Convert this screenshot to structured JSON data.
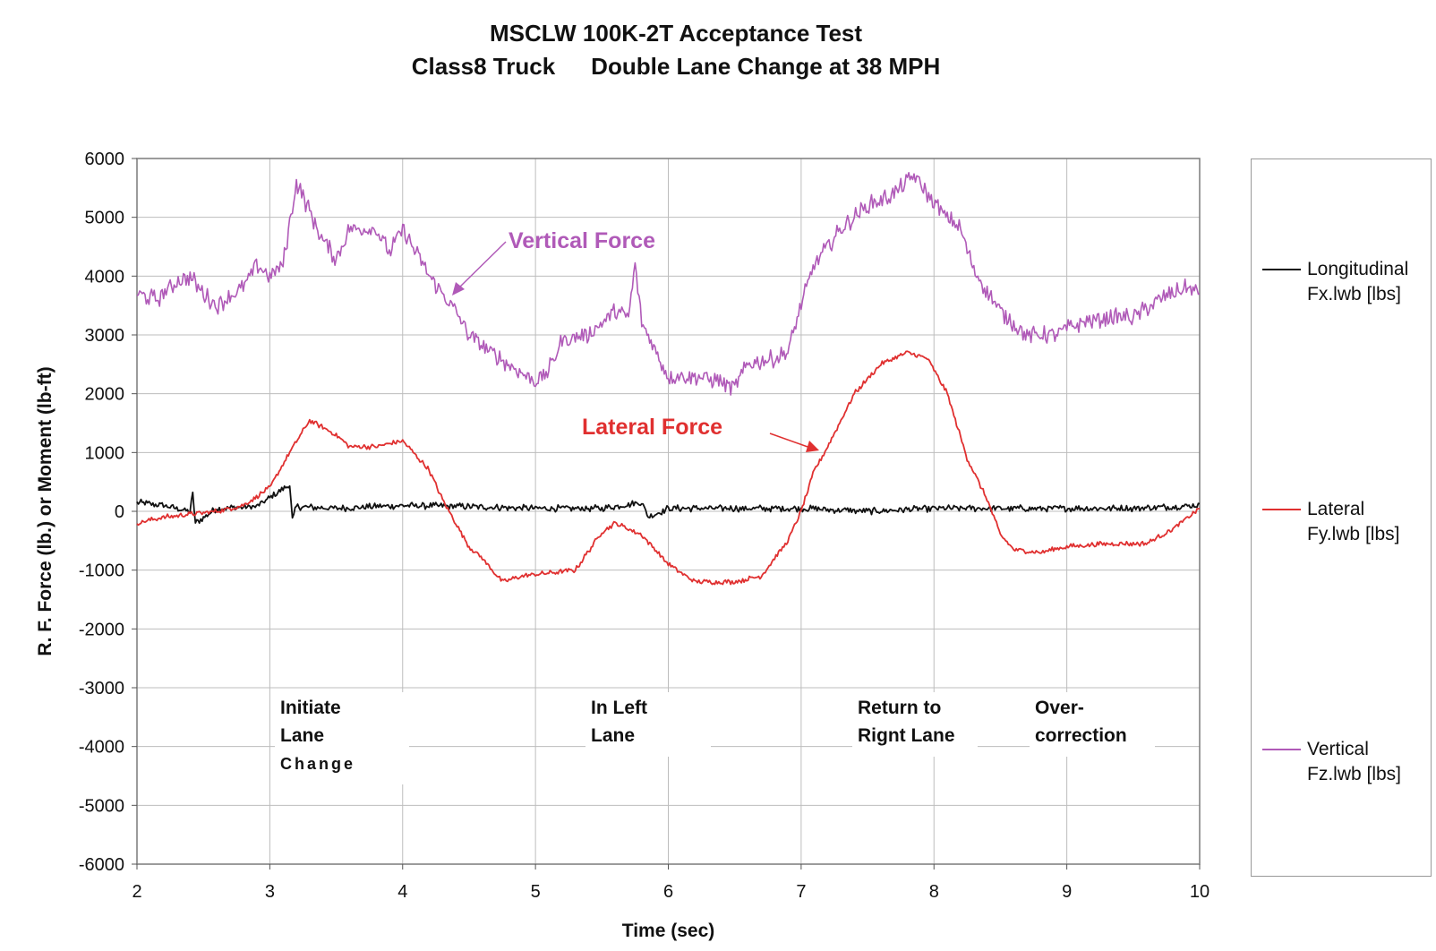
{
  "chart_data": {
    "type": "line",
    "title": "MSCLW 100K-2T Acceptance Test",
    "subtitle_left": "Class8 Truck",
    "subtitle_right": "Double Lane Change at 38 MPH",
    "xlabel": "Time (sec)",
    "ylabel": "R. F. Force (lb.) or Moment (lb-ft)",
    "xlim": [
      2,
      10
    ],
    "ylim": [
      -6000,
      6000
    ],
    "xticks": [
      2,
      3,
      4,
      5,
      6,
      7,
      8,
      9,
      10
    ],
    "yticks": [
      6000,
      5000,
      4000,
      3000,
      2000,
      1000,
      0,
      -1000,
      -2000,
      -3000,
      -4000,
      -5000,
      -6000
    ],
    "grid": true,
    "legend_position": "right",
    "series": [
      {
        "name": "Longitudinal Fx.lwb [lbs]",
        "color": "#111111",
        "x": [
          2.0,
          2.2,
          2.4,
          2.42,
          2.44,
          2.6,
          2.9,
          3.15,
          3.17,
          3.2,
          3.5,
          4.0,
          4.5,
          5.0,
          5.5,
          5.8,
          5.85,
          6.0,
          6.5,
          7.0,
          7.5,
          8.0,
          8.5,
          9.0,
          9.5,
          10.0
        ],
        "y": [
          150,
          100,
          0,
          300,
          -200,
          50,
          80,
          450,
          -150,
          80,
          50,
          100,
          80,
          50,
          50,
          150,
          -100,
          50,
          50,
          50,
          0,
          50,
          50,
          50,
          50,
          100
        ]
      },
      {
        "name": "Lateral Fy.lwb [lbs]",
        "color": "#e03030",
        "x": [
          2.0,
          2.2,
          2.4,
          2.6,
          2.8,
          3.0,
          3.15,
          3.3,
          3.5,
          3.6,
          3.8,
          4.0,
          4.2,
          4.3,
          4.4,
          4.5,
          4.6,
          4.75,
          4.9,
          5.1,
          5.3,
          5.5,
          5.6,
          5.8,
          6.0,
          6.2,
          6.5,
          6.7,
          6.9,
          7.0,
          7.1,
          7.2,
          7.4,
          7.6,
          7.8,
          7.95,
          8.1,
          8.25,
          8.4,
          8.5,
          8.6,
          8.8,
          9.0,
          9.3,
          9.6,
          9.8,
          10.0
        ],
        "y": [
          -200,
          -100,
          -50,
          0,
          100,
          400,
          1000,
          1550,
          1300,
          1100,
          1100,
          1200,
          700,
          200,
          -200,
          -600,
          -800,
          -1200,
          -1100,
          -1050,
          -1000,
          -350,
          -200,
          -400,
          -900,
          -1200,
          -1200,
          -1100,
          -500,
          0,
          700,
          1100,
          2000,
          2500,
          2700,
          2600,
          2000,
          900,
          200,
          -400,
          -650,
          -700,
          -600,
          -550,
          -550,
          -300,
          50
        ]
      },
      {
        "name": "Vertical Fz.lwb [lbs]",
        "color": "#b05ab8",
        "x": [
          2.0,
          2.15,
          2.3,
          2.4,
          2.5,
          2.6,
          2.8,
          2.9,
          3.0,
          3.1,
          3.2,
          3.3,
          3.4,
          3.5,
          3.6,
          3.8,
          3.9,
          4.0,
          4.2,
          4.3,
          4.4,
          4.5,
          4.6,
          4.8,
          5.0,
          5.1,
          5.2,
          5.4,
          5.6,
          5.7,
          5.75,
          5.8,
          6.0,
          6.2,
          6.4,
          6.5,
          6.6,
          6.8,
          6.9,
          7.0,
          7.1,
          7.3,
          7.5,
          7.7,
          7.85,
          7.95,
          8.05,
          8.2,
          8.3,
          8.5,
          8.7,
          8.9,
          9.1,
          9.3,
          9.5,
          9.7,
          9.9,
          10.0
        ],
        "y": [
          3700,
          3600,
          3900,
          4000,
          3700,
          3500,
          3800,
          4200,
          4000,
          4200,
          5600,
          5100,
          4600,
          4300,
          4800,
          4800,
          4400,
          4800,
          4000,
          3700,
          3400,
          3000,
          2800,
          2500,
          2200,
          2400,
          2900,
          3000,
          3400,
          3300,
          4200,
          3200,
          2300,
          2300,
          2200,
          2100,
          2500,
          2600,
          2700,
          3500,
          4200,
          4800,
          5200,
          5400,
          5700,
          5400,
          5100,
          4800,
          4100,
          3400,
          3000,
          3000,
          3200,
          3300,
          3300,
          3600,
          3800,
          3700
        ]
      }
    ],
    "annotations": {
      "vertical_force_label": "Vertical Force",
      "lateral_force_label": "Lateral Force",
      "phase_1_line1": "Initiate",
      "phase_1_line2": "Lane",
      "phase_1_line3": "Change",
      "phase_2_line1": "In Left",
      "phase_2_line2": "Lane",
      "phase_3_line1": "Return to",
      "phase_3_line2": "Rignt Lane",
      "phase_4_line1": "Over-",
      "phase_4_line2": "correction"
    },
    "legend": {
      "item_1_line1": "Longitudinal",
      "item_1_line2": "Fx.lwb [lbs]",
      "item_2_line1": "Lateral",
      "item_2_line2": "Fy.lwb [lbs]",
      "item_3_line1": "Vertical",
      "item_3_line2": "Fz.lwb [lbs]"
    },
    "colors": {
      "longitudinal": "#111111",
      "lateral": "#e03030",
      "vertical": "#b05ab8",
      "grid": "#bdbdbd"
    }
  }
}
